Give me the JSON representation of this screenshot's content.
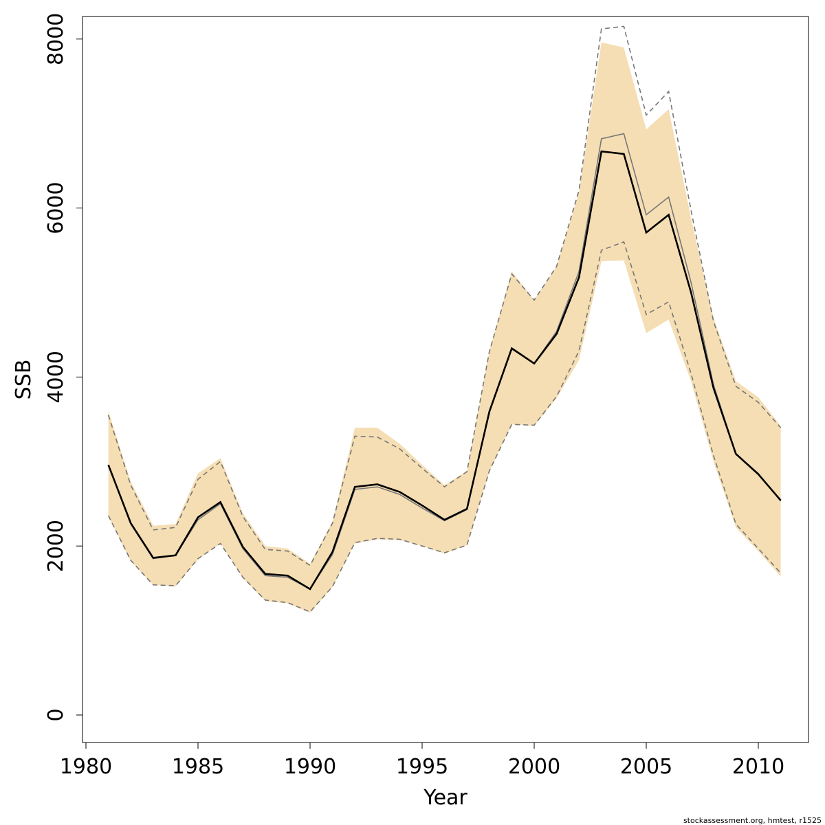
{
  "chart_data": {
    "type": "area",
    "xlabel": "Year",
    "ylabel": "SSB",
    "xlim": [
      1980,
      2012
    ],
    "ylim": [
      0,
      8000
    ],
    "x_ticks": [
      "1980",
      "1985",
      "1990",
      "1995",
      "2000",
      "2005",
      "2010"
    ],
    "y_ticks": [
      "0",
      "2000",
      "4000",
      "6000",
      "8000"
    ],
    "grid": false,
    "legend": "none",
    "years": [
      1981,
      1982,
      1983,
      1984,
      1985,
      1986,
      1987,
      1988,
      1989,
      1990,
      1991,
      1992,
      1993,
      1994,
      1995,
      1996,
      1997,
      1998,
      1999,
      2000,
      2001,
      2002,
      2003,
      2004,
      2005,
      2006,
      2007,
      2008,
      2009,
      2010,
      2011
    ],
    "series": [
      {
        "style": "band",
        "color": "#F5DEB3",
        "lower": [
          2350,
          1820,
          1540,
          1520,
          1840,
          2030,
          1620,
          1350,
          1320,
          1210,
          1510,
          2030,
          2080,
          2070,
          2000,
          1910,
          2010,
          2880,
          3440,
          3420,
          3750,
          4200,
          5370,
          5380,
          4520,
          4680,
          3950,
          3000,
          2220,
          1940,
          1640
        ],
        "upper": [
          3600,
          2760,
          2240,
          2260,
          2860,
          3040,
          2390,
          2000,
          1970,
          1790,
          2290,
          3400,
          3400,
          3210,
          2960,
          2720,
          2890,
          4310,
          5250,
          4910,
          5310,
          6190,
          7960,
          7900,
          6930,
          7170,
          5880,
          4700,
          3950,
          3760,
          3420
        ]
      },
      {
        "style": "dashed",
        "color": "#777777",
        "values_lower": [
          2360,
          1830,
          1540,
          1530,
          1850,
          2030,
          1630,
          1360,
          1330,
          1220,
          1520,
          2040,
          2090,
          2080,
          2000,
          1920,
          2010,
          2890,
          3440,
          3430,
          3770,
          4310,
          5500,
          5600,
          4740,
          4890,
          4040,
          3070,
          2260,
          1970,
          1680
        ],
        "values_upper": [
          3550,
          2720,
          2190,
          2220,
          2790,
          3000,
          2350,
          1960,
          1940,
          1770,
          2270,
          3300,
          3290,
          3150,
          2920,
          2700,
          2880,
          4300,
          5220,
          4910,
          5310,
          6210,
          8120,
          8150,
          7100,
          7380,
          5970,
          4660,
          3890,
          3700,
          3400
        ]
      },
      {
        "style": "thin",
        "color": "#777777",
        "values": [
          2960,
          2260,
          1850,
          1890,
          2310,
          2500,
          1970,
          1650,
          1630,
          1490,
          1900,
          2670,
          2700,
          2610,
          2450,
          2300,
          2430,
          3600,
          4330,
          4160,
          4540,
          5250,
          6820,
          6880,
          5920,
          6130,
          5120,
          3910,
          3090,
          2860,
          2530
        ]
      },
      {
        "style": "thick",
        "color": "#000000",
        "values": [
          2960,
          2270,
          1860,
          1890,
          2340,
          2520,
          1990,
          1670,
          1650,
          1490,
          1930,
          2700,
          2730,
          2640,
          2480,
          2310,
          2440,
          3590,
          4340,
          4160,
          4510,
          5180,
          6670,
          6640,
          5710,
          5920,
          5000,
          3870,
          3090,
          2850,
          2540
        ]
      }
    ]
  },
  "footer": "stockassessment.org, hmtest, r1525"
}
